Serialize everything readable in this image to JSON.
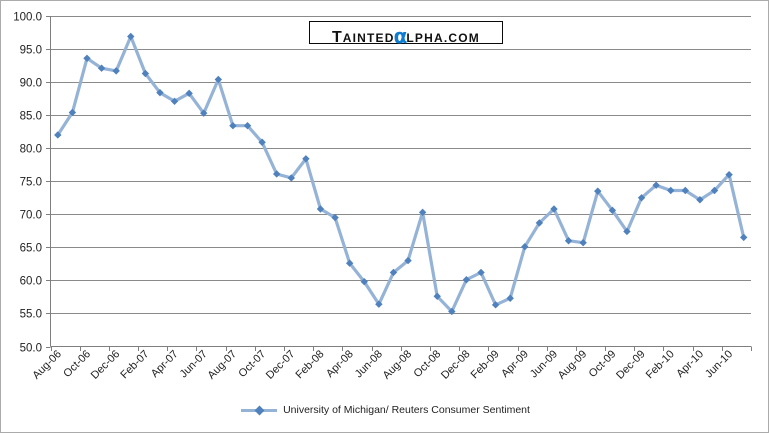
{
  "logo": {
    "part1": "T",
    "part2": "AINTED",
    "alpha": "α",
    "part3": "LPHA.COM",
    "alpha_color": "#0e7cd1"
  },
  "legend": {
    "label": "University of Michigan/ Reuters Consumer Sentiment"
  },
  "colors": {
    "line": "#95B3D7",
    "marker": "#4F81BD",
    "grid": "#8a8a8a",
    "axis": "#7f7f7f",
    "tick_text": "#1f1f1f",
    "frame_border": "#ababab",
    "background": "#ffffff"
  },
  "chart_data": {
    "type": "line",
    "title": "",
    "xlabel": "",
    "ylabel": "",
    "ylim": [
      50,
      100
    ],
    "y_tick_step": 5,
    "y_tick_labels": [
      "100.0",
      "95.0",
      "90.0",
      "85.0",
      "80.0",
      "75.0",
      "70.0",
      "65.0",
      "60.0",
      "55.0",
      "50.0"
    ],
    "grid": "horizontal",
    "legend_position": "bottom",
    "x_label_rotation": 45,
    "x_label_every": 2,
    "categories": [
      "Aug-06",
      "Sep-06",
      "Oct-06",
      "Nov-06",
      "Dec-06",
      "Jan-07",
      "Feb-07",
      "Mar-07",
      "Apr-07",
      "May-07",
      "Jun-07",
      "Jul-07",
      "Aug-07",
      "Sep-07",
      "Oct-07",
      "Nov-07",
      "Dec-07",
      "Jan-08",
      "Feb-08",
      "Mar-08",
      "Apr-08",
      "May-08",
      "Jun-08",
      "Jul-08",
      "Aug-08",
      "Sep-08",
      "Oct-08",
      "Nov-08",
      "Dec-08",
      "Jan-09",
      "Feb-09",
      "Mar-09",
      "Apr-09",
      "May-09",
      "Jun-09",
      "Jul-09",
      "Aug-09",
      "Sep-09",
      "Oct-09",
      "Nov-09",
      "Dec-09",
      "Jan-10",
      "Feb-10",
      "Mar-10",
      "Apr-10",
      "May-10",
      "Jun-10",
      "Jul-10"
    ],
    "series": [
      {
        "name": "University of Michigan/ Reuters Consumer Sentiment",
        "values": [
          82.0,
          85.4,
          93.6,
          92.1,
          91.7,
          96.9,
          91.3,
          88.4,
          87.1,
          88.3,
          85.3,
          90.4,
          83.4,
          83.4,
          80.9,
          76.1,
          75.5,
          78.4,
          70.8,
          69.5,
          62.6,
          59.8,
          56.4,
          61.2,
          63.0,
          70.3,
          57.6,
          55.3,
          60.1,
          61.2,
          56.3,
          57.3,
          65.1,
          68.7,
          70.8,
          66.0,
          65.7,
          73.5,
          70.6,
          67.4,
          72.5,
          74.4,
          73.6,
          73.6,
          72.2,
          73.6,
          76.0,
          66.5
        ]
      }
    ]
  }
}
